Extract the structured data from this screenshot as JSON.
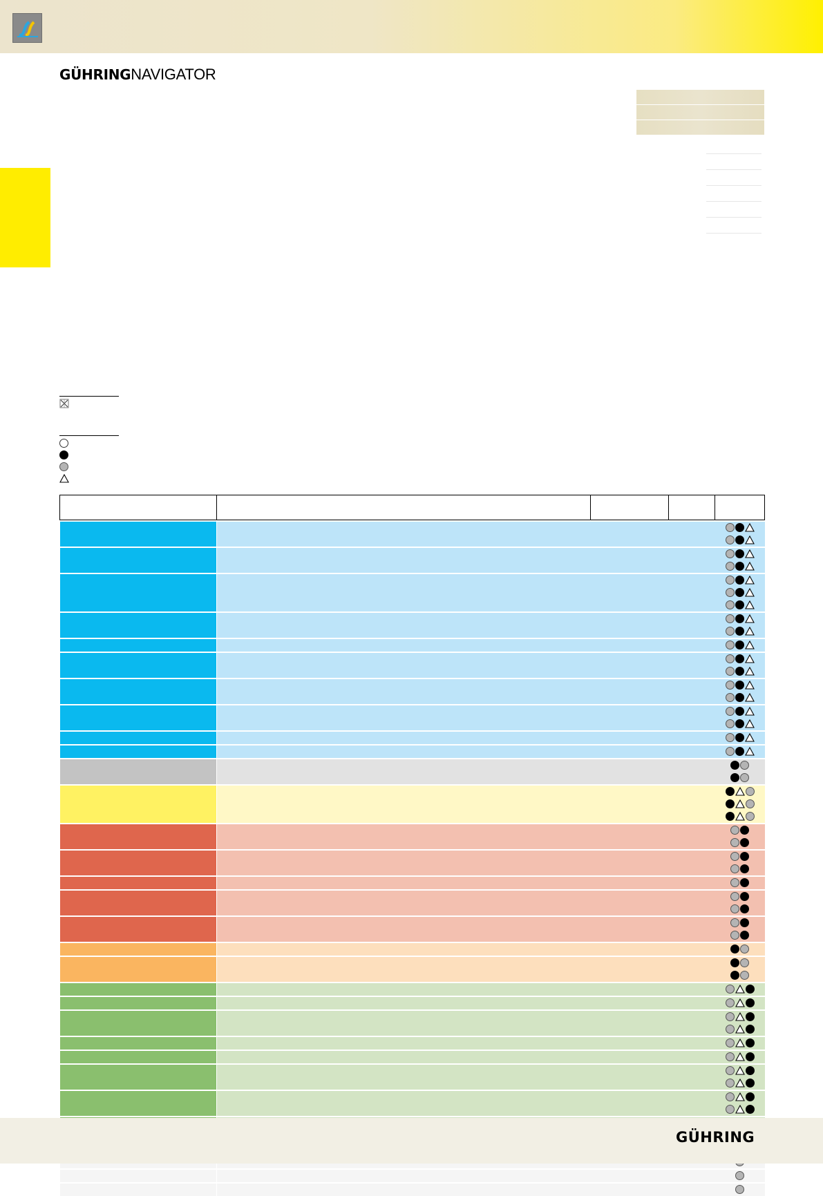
{
  "brand": {
    "bold": "GÜHRING",
    "light": "NAVIGATOR"
  },
  "footer": {
    "logo_text": "GÜHRING"
  },
  "colors": {
    "blue": [
      "#0ab9ef",
      "#bde4f9"
    ],
    "grey": [
      "#c3c3c3",
      "#e2e2e2"
    ],
    "yellow": [
      "#fff262",
      "#fff8c6"
    ],
    "red": [
      "#df664d",
      "#f3c0b0"
    ],
    "orange": [
      "#fab560",
      "#fddfbd"
    ],
    "green": [
      "#8abf6e",
      "#d3e4c4"
    ],
    "light": [
      "#f5f5f5",
      "#f5f5f5"
    ]
  },
  "legend": {
    "group1_icon": "crossed-tool-icon",
    "group2_icons": [
      "empty-circle-icon",
      "black-circle-icon",
      "grey-circle-icon",
      "triangle-icon"
    ]
  },
  "table": {
    "groups": [
      {
        "color": "blue",
        "symbols": "gbt",
        "blocks": [
          2,
          2,
          3,
          2,
          1,
          2,
          2,
          2,
          1,
          1
        ]
      },
      {
        "color": "grey",
        "symbols": "bg",
        "blocks": [
          2
        ]
      },
      {
        "color": "yellow",
        "symbols": "btg",
        "blocks": [
          3
        ]
      },
      {
        "color": "red",
        "symbols": "gb",
        "blocks": [
          2,
          2,
          1,
          2,
          2
        ]
      },
      {
        "color": "orange",
        "symbols": "bg",
        "blocks": [
          1,
          2
        ]
      },
      {
        "color": "green",
        "symbols": "gtb",
        "blocks": [
          1,
          1,
          2,
          1,
          1,
          2,
          2,
          2
        ]
      },
      {
        "color": "light",
        "symbols": "g",
        "blocks": [
          2,
          1,
          1
        ]
      }
    ]
  }
}
